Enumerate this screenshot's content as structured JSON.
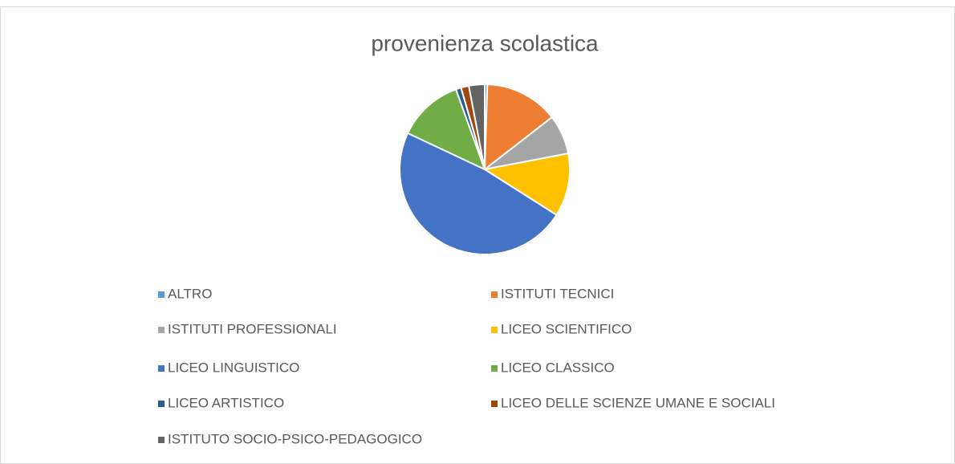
{
  "chart_data": {
    "type": "pie",
    "title": "provenienza scolastica",
    "categories": [
      "ALTRO",
      "ISTITUTI TECNICI",
      "ISTITUTI PROFESSIONALI",
      "LICEO SCIENTIFICO",
      "LICEO LINGUISTICO",
      "LICEO CLASSICO",
      "LICEO ARTISTICO",
      "LICEO DELLE SCIENZE UMANE E SOCIALI",
      "ISTITUTO SOCIO-PSICO-PEDAGOGICO"
    ],
    "values": [
      0.5,
      14,
      7.5,
      12,
      48,
      12.5,
      1,
      1.5,
      3
    ],
    "colors": [
      "#5b9bd5",
      "#ed7d31",
      "#a5a5a5",
      "#ffc000",
      "#4472c4",
      "#70ad47",
      "#255e91",
      "#9e480e",
      "#636363"
    ],
    "legend": "bottom"
  }
}
